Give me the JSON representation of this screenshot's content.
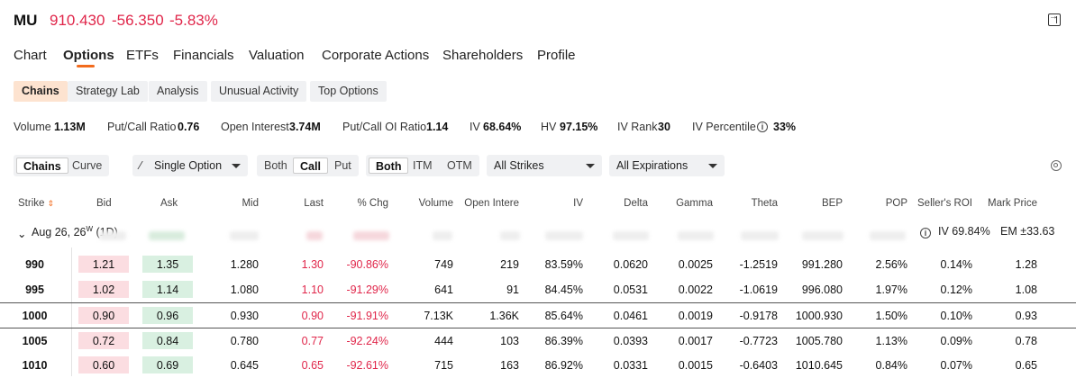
{
  "header": {
    "ticker": "MU",
    "price": "910.430",
    "change": "-56.350",
    "change_pct": "-5.83%"
  },
  "tabs": [
    "Chart",
    "Options",
    "ETFs",
    "Financials",
    "Valuation",
    "Corporate Actions",
    "Shareholders",
    "Profile"
  ],
  "active_tab": "Options",
  "subtabs": [
    "Chains",
    "Strategy Lab",
    "Analysis",
    "Unusual Activity",
    "Top Options"
  ],
  "active_subtab": "Chains",
  "stats": [
    {
      "label": "Volume",
      "value": "1.13M"
    },
    {
      "label": "Put/Call Ratio",
      "value": "0.76"
    },
    {
      "label": "Open Interest",
      "value": "3.74M"
    },
    {
      "label": "Put/Call OI Ratio",
      "value": "1.14"
    },
    {
      "label": "IV",
      "value": "68.64%"
    },
    {
      "label": "HV",
      "value": "97.15%"
    },
    {
      "label": "IV Rank",
      "value": "30"
    },
    {
      "label": "IV Percentile",
      "value": "33%"
    }
  ],
  "controls": {
    "view": [
      "Chains",
      "Curve"
    ],
    "strategy": "Single Option",
    "side": [
      "Both",
      "Call",
      "Put"
    ],
    "moneyness": [
      "Both",
      "ITM",
      "OTM"
    ],
    "strikes": "All Strikes",
    "expirations": "All Expirations"
  },
  "columns": [
    "Strike",
    "Bid",
    "Ask",
    "Mid",
    "Last",
    "% Chg",
    "Volume",
    "Open Intere",
    "IV",
    "Delta",
    "Gamma",
    "Theta",
    "BEP",
    "POP",
    "Seller's ROI",
    "Mark Price"
  ],
  "expiry_group": {
    "label": "Aug 26, 26",
    "superscript": "W",
    "dte": "(1D)",
    "iv": "IV 69.84%",
    "em": "EM ±33.63"
  },
  "rows": [
    {
      "strike": "990",
      "bid": "1.21",
      "ask": "1.35",
      "mid": "1.280",
      "last": "1.30",
      "pct_chg": "-90.86%",
      "volume": "749",
      "oi": "219",
      "iv": "83.59%",
      "delta": "0.0620",
      "gamma": "0.0025",
      "theta": "-1.2519",
      "bep": "991.280",
      "pop": "2.56%",
      "roi": "0.14%",
      "mark": "1.28"
    },
    {
      "strike": "995",
      "bid": "1.02",
      "ask": "1.14",
      "mid": "1.080",
      "last": "1.10",
      "pct_chg": "-91.29%",
      "volume": "641",
      "oi": "91",
      "iv": "84.45%",
      "delta": "0.0531",
      "gamma": "0.0022",
      "theta": "-1.0619",
      "bep": "996.080",
      "pop": "1.97%",
      "roi": "0.12%",
      "mark": "1.08"
    },
    {
      "strike": "1000",
      "bid": "0.90",
      "ask": "0.96",
      "mid": "0.930",
      "last": "0.90",
      "pct_chg": "-91.91%",
      "volume": "7.13K",
      "oi": "1.36K",
      "iv": "85.64%",
      "delta": "0.0461",
      "gamma": "0.0019",
      "theta": "-0.9178",
      "bep": "1000.930",
      "pop": "1.50%",
      "roi": "0.10%",
      "mark": "0.93"
    },
    {
      "strike": "1005",
      "bid": "0.72",
      "ask": "0.84",
      "mid": "0.780",
      "last": "0.77",
      "pct_chg": "-92.24%",
      "volume": "444",
      "oi": "103",
      "iv": "86.39%",
      "delta": "0.0393",
      "gamma": "0.0017",
      "theta": "-0.7723",
      "bep": "1005.780",
      "pop": "1.13%",
      "roi": "0.09%",
      "mark": "0.78"
    },
    {
      "strike": "1010",
      "bid": "0.60",
      "ask": "0.69",
      "mid": "0.645",
      "last": "0.65",
      "pct_chg": "-92.61%",
      "volume": "715",
      "oi": "163",
      "iv": "86.92%",
      "delta": "0.0331",
      "gamma": "0.0015",
      "theta": "-0.6403",
      "bep": "1010.645",
      "pop": "0.84%",
      "roi": "0.07%",
      "mark": "0.65"
    }
  ],
  "colors": {
    "negative": "#e0264a",
    "accent": "#f26b1d",
    "bid_bg": "#fbdde1",
    "ask_bg": "#d9f0e1"
  }
}
